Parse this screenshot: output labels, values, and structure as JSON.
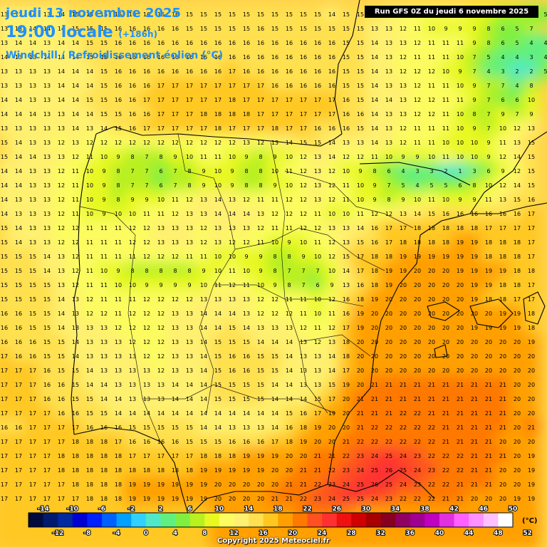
{
  "header": {
    "date": "jeudi 13 novembre 2025",
    "time": "19:00 locale",
    "lead": "(+186h)",
    "parameter": "Windchill / Refroidissement éolien (°C)"
  },
  "run_label": "Run GFS 0Z du jeudi 6 novembre 2025",
  "copyright": "Copyright 2025 Meteociel.fr",
  "legend": {
    "unit": "(°C)",
    "top_labels": [
      "-14",
      "-10",
      "-6",
      "-2",
      "2",
      "6",
      "10",
      "14",
      "18",
      "22",
      "26",
      "30",
      "34",
      "38",
      "42",
      "46",
      "50"
    ],
    "bottom_labels": [
      "-12",
      "-8",
      "-4",
      "0",
      "4",
      "8",
      "12",
      "16",
      "20",
      "24",
      "28",
      "32",
      "36",
      "40",
      "44",
      "48",
      "52"
    ],
    "colors": [
      "#000a3c",
      "#001a6e",
      "#002aa0",
      "#0000d2",
      "#0020ff",
      "#0060ff",
      "#00a0ff",
      "#30d0ff",
      "#50e8c8",
      "#60f080",
      "#80f040",
      "#b8f020",
      "#e8f820",
      "#fcfc60",
      "#fff070",
      "#ffe050",
      "#ffc820",
      "#ffa000",
      "#ff7800",
      "#ff5020",
      "#ff3030",
      "#f01010",
      "#d00000",
      "#a80000",
      "#880020",
      "#900060",
      "#a00090",
      "#c000c0",
      "#e030e0",
      "#ff60ff",
      "#ff90ff",
      "#ffc0ff",
      "#ffffff"
    ]
  },
  "grid": {
    "rows": [
      [
        13,
        13,
        14,
        13,
        14,
        15,
        15,
        15,
        16,
        16,
        16,
        16,
        16,
        15,
        15,
        15,
        15,
        15,
        15,
        15,
        15,
        15,
        15,
        14,
        15,
        15,
        15,
        14,
        13,
        12,
        12,
        11,
        11,
        10,
        9,
        8,
        7,
        6,
        5
      ],
      [
        13,
        13,
        14,
        14,
        14,
        15,
        15,
        15,
        16,
        16,
        16,
        16,
        16,
        15,
        15,
        15,
        15,
        15,
        16,
        15,
        15,
        15,
        15,
        15,
        15,
        15,
        13,
        13,
        12,
        11,
        10,
        9,
        9,
        9,
        8,
        6,
        5,
        7
      ],
      [
        13,
        14,
        14,
        13,
        14,
        14,
        15,
        15,
        16,
        16,
        16,
        16,
        16,
        16,
        16,
        16,
        16,
        16,
        16,
        16,
        16,
        16,
        16,
        16,
        15,
        15,
        14,
        13,
        13,
        12,
        11,
        11,
        11,
        9,
        8,
        6,
        5,
        4,
        4
      ],
      [
        14,
        13,
        13,
        14,
        14,
        14,
        15,
        15,
        16,
        16,
        16,
        16,
        16,
        16,
        16,
        16,
        16,
        16,
        16,
        16,
        16,
        16,
        16,
        16,
        15,
        15,
        14,
        13,
        12,
        11,
        11,
        11,
        10,
        7,
        5,
        4,
        4,
        3,
        4
      ],
      [
        13,
        13,
        13,
        13,
        14,
        14,
        14,
        15,
        16,
        16,
        16,
        16,
        16,
        16,
        16,
        16,
        17,
        16,
        16,
        16,
        16,
        16,
        16,
        16,
        15,
        15,
        14,
        13,
        12,
        12,
        12,
        10,
        9,
        7,
        4,
        3,
        2,
        2,
        5
      ],
      [
        13,
        13,
        13,
        13,
        14,
        14,
        14,
        15,
        16,
        16,
        16,
        17,
        17,
        17,
        17,
        17,
        17,
        17,
        17,
        16,
        16,
        16,
        16,
        16,
        15,
        15,
        14,
        13,
        13,
        12,
        11,
        11,
        10,
        9,
        7,
        7,
        4,
        8
      ],
      [
        14,
        14,
        13,
        13,
        14,
        14,
        15,
        15,
        16,
        16,
        17,
        17,
        17,
        17,
        17,
        17,
        18,
        17,
        17,
        17,
        17,
        17,
        17,
        17,
        16,
        15,
        14,
        14,
        13,
        12,
        12,
        11,
        11,
        9,
        7,
        6,
        6,
        10
      ],
      [
        14,
        14,
        14,
        13,
        13,
        14,
        14,
        15,
        15,
        16,
        16,
        17,
        17,
        17,
        18,
        18,
        18,
        18,
        17,
        17,
        17,
        17,
        17,
        17,
        16,
        16,
        14,
        13,
        13,
        12,
        12,
        11,
        10,
        8,
        7,
        9,
        7,
        9
      ],
      [
        13,
        13,
        13,
        13,
        13,
        14,
        13,
        14,
        15,
        16,
        17,
        17,
        17,
        17,
        17,
        18,
        17,
        17,
        17,
        18,
        17,
        17,
        16,
        16,
        16,
        15,
        14,
        13,
        12,
        11,
        11,
        11,
        10,
        9,
        7,
        10,
        12,
        13
      ],
      [
        15,
        14,
        13,
        13,
        12,
        13,
        12,
        12,
        12,
        12,
        12,
        12,
        12,
        12,
        12,
        12,
        12,
        13,
        12,
        13,
        14,
        15,
        15,
        14,
        13,
        13,
        14,
        13,
        12,
        11,
        11,
        10,
        10,
        10,
        9,
        11,
        13,
        15
      ],
      [
        15,
        14,
        14,
        13,
        13,
        12,
        11,
        10,
        9,
        8,
        7,
        8,
        9,
        10,
        11,
        11,
        10,
        9,
        8,
        9,
        10,
        12,
        13,
        14,
        12,
        12,
        11,
        10,
        9,
        9,
        10,
        11,
        10,
        10,
        9,
        12,
        14,
        15
      ],
      [
        14,
        14,
        13,
        13,
        12,
        11,
        10,
        9,
        8,
        7,
        7,
        6,
        7,
        8,
        9,
        10,
        9,
        8,
        8,
        10,
        11,
        12,
        13,
        12,
        10,
        9,
        8,
        6,
        4,
        3,
        3,
        2,
        1,
        3,
        6,
        9,
        12,
        15
      ],
      [
        14,
        14,
        13,
        13,
        12,
        11,
        10,
        9,
        8,
        7,
        7,
        6,
        7,
        8,
        9,
        10,
        9,
        8,
        8,
        9,
        10,
        12,
        13,
        12,
        11,
        10,
        9,
        7,
        5,
        4,
        5,
        5,
        6,
        8,
        10,
        12,
        14,
        15
      ],
      [
        14,
        13,
        13,
        13,
        12,
        11,
        10,
        9,
        8,
        9,
        9,
        10,
        11,
        12,
        13,
        14,
        13,
        12,
        11,
        11,
        12,
        12,
        13,
        12,
        11,
        10,
        9,
        8,
        9,
        10,
        11,
        10,
        9,
        9,
        11,
        13,
        15,
        16
      ],
      [
        14,
        13,
        13,
        13,
        12,
        11,
        10,
        9,
        10,
        10,
        11,
        11,
        12,
        13,
        13,
        14,
        14,
        14,
        13,
        12,
        12,
        12,
        11,
        10,
        10,
        11,
        12,
        12,
        13,
        14,
        15,
        16,
        16,
        16,
        16,
        16,
        16,
        17
      ],
      [
        15,
        14,
        13,
        13,
        12,
        12,
        11,
        11,
        11,
        12,
        12,
        13,
        13,
        13,
        12,
        13,
        13,
        13,
        12,
        11,
        11,
        12,
        12,
        13,
        13,
        14,
        16,
        17,
        17,
        18,
        18,
        18,
        18,
        18,
        17,
        17,
        17,
        17
      ],
      [
        15,
        14,
        13,
        13,
        12,
        12,
        11,
        11,
        11,
        12,
        12,
        13,
        13,
        13,
        12,
        13,
        12,
        12,
        11,
        10,
        9,
        10,
        11,
        12,
        13,
        15,
        16,
        17,
        18,
        18,
        18,
        18,
        19,
        19,
        18,
        18,
        18,
        17
      ],
      [
        15,
        15,
        15,
        14,
        13,
        12,
        11,
        11,
        11,
        11,
        12,
        12,
        12,
        11,
        11,
        10,
        10,
        9,
        9,
        8,
        8,
        9,
        10,
        12,
        15,
        17,
        18,
        18,
        19,
        19,
        19,
        19,
        19,
        19,
        18,
        18,
        18,
        17
      ],
      [
        15,
        15,
        15,
        14,
        13,
        12,
        11,
        10,
        9,
        8,
        8,
        8,
        8,
        8,
        9,
        10,
        11,
        10,
        9,
        8,
        7,
        7,
        7,
        10,
        14,
        17,
        18,
        19,
        19,
        20,
        20,
        20,
        19,
        19,
        19,
        19,
        18,
        18
      ],
      [
        15,
        15,
        15,
        15,
        13,
        12,
        11,
        11,
        10,
        10,
        9,
        9,
        9,
        9,
        10,
        11,
        12,
        11,
        10,
        9,
        8,
        7,
        6,
        9,
        13,
        16,
        18,
        19,
        20,
        20,
        20,
        20,
        20,
        19,
        19,
        18,
        18,
        17
      ],
      [
        15,
        15,
        15,
        15,
        14,
        13,
        12,
        11,
        11,
        11,
        12,
        12,
        12,
        12,
        13,
        13,
        13,
        13,
        12,
        12,
        11,
        11,
        10,
        12,
        16,
        18,
        19,
        20,
        20,
        20,
        20,
        20,
        20,
        19,
        18,
        18,
        17,
        17
      ],
      [
        16,
        16,
        15,
        15,
        14,
        13,
        12,
        12,
        11,
        12,
        12,
        12,
        13,
        13,
        14,
        14,
        14,
        13,
        12,
        12,
        12,
        11,
        10,
        11,
        16,
        19,
        20,
        20,
        20,
        20,
        20,
        20,
        20,
        20,
        20,
        19,
        19,
        18
      ],
      [
        16,
        16,
        15,
        15,
        14,
        13,
        13,
        13,
        12,
        12,
        12,
        12,
        13,
        13,
        14,
        14,
        15,
        14,
        13,
        13,
        13,
        12,
        11,
        12,
        17,
        19,
        20,
        20,
        20,
        20,
        20,
        20,
        20,
        19,
        19,
        19,
        19,
        18
      ],
      [
        16,
        16,
        16,
        15,
        15,
        14,
        13,
        13,
        13,
        12,
        12,
        12,
        13,
        13,
        14,
        15,
        15,
        15,
        14,
        14,
        14,
        13,
        12,
        13,
        18,
        20,
        20,
        20,
        20,
        20,
        20,
        20,
        20,
        20,
        20,
        20,
        20,
        19
      ],
      [
        17,
        16,
        16,
        15,
        15,
        14,
        13,
        13,
        13,
        13,
        12,
        12,
        13,
        13,
        14,
        15,
        16,
        16,
        15,
        15,
        14,
        13,
        13,
        14,
        18,
        20,
        20,
        20,
        20,
        20,
        20,
        20,
        20,
        20,
        20,
        20,
        20,
        20
      ],
      [
        17,
        17,
        17,
        16,
        15,
        15,
        14,
        13,
        13,
        13,
        13,
        12,
        13,
        13,
        14,
        15,
        16,
        16,
        15,
        15,
        14,
        13,
        13,
        14,
        17,
        20,
        20,
        20,
        20,
        20,
        20,
        20,
        20,
        20,
        20,
        20,
        20,
        20
      ],
      [
        17,
        17,
        17,
        16,
        16,
        15,
        14,
        14,
        13,
        13,
        13,
        13,
        14,
        14,
        14,
        15,
        15,
        15,
        15,
        14,
        14,
        13,
        13,
        15,
        19,
        20,
        21,
        21,
        21,
        21,
        21,
        21,
        21,
        21,
        21,
        21,
        20,
        20
      ],
      [
        17,
        17,
        17,
        16,
        16,
        15,
        15,
        14,
        14,
        13,
        13,
        13,
        14,
        14,
        14,
        15,
        15,
        15,
        15,
        14,
        14,
        14,
        15,
        17,
        20,
        21,
        21,
        21,
        21,
        21,
        21,
        21,
        21,
        21,
        21,
        21,
        20,
        20
      ],
      [
        17,
        17,
        17,
        17,
        16,
        16,
        15,
        15,
        14,
        14,
        14,
        14,
        14,
        14,
        14,
        14,
        14,
        14,
        14,
        14,
        15,
        16,
        17,
        19,
        20,
        21,
        21,
        21,
        22,
        22,
        21,
        21,
        21,
        21,
        21,
        21,
        20,
        20
      ],
      [
        16,
        16,
        17,
        17,
        17,
        17,
        16,
        16,
        16,
        15,
        15,
        15,
        15,
        15,
        14,
        14,
        13,
        13,
        13,
        14,
        16,
        18,
        19,
        20,
        20,
        21,
        22,
        22,
        22,
        22,
        22,
        21,
        21,
        21,
        21,
        21,
        20,
        21
      ],
      [
        17,
        17,
        17,
        17,
        17,
        18,
        18,
        18,
        17,
        16,
        16,
        16,
        16,
        15,
        15,
        15,
        16,
        16,
        16,
        17,
        18,
        19,
        20,
        20,
        21,
        22,
        22,
        22,
        22,
        22,
        22,
        21,
        21,
        21,
        21,
        20,
        20,
        20
      ],
      [
        17,
        17,
        17,
        17,
        18,
        18,
        18,
        18,
        18,
        17,
        17,
        17,
        17,
        17,
        18,
        18,
        18,
        19,
        19,
        19,
        20,
        20,
        21,
        21,
        22,
        23,
        24,
        25,
        24,
        23,
        22,
        22,
        22,
        21,
        21,
        21,
        20,
        19
      ],
      [
        17,
        17,
        17,
        17,
        18,
        18,
        18,
        18,
        18,
        18,
        18,
        18,
        18,
        18,
        19,
        19,
        19,
        19,
        19,
        20,
        20,
        21,
        21,
        22,
        23,
        24,
        25,
        26,
        25,
        24,
        23,
        22,
        22,
        21,
        21,
        20,
        20,
        19
      ],
      [
        17,
        17,
        17,
        17,
        17,
        18,
        18,
        18,
        18,
        19,
        19,
        19,
        19,
        19,
        19,
        20,
        20,
        20,
        20,
        20,
        21,
        21,
        22,
        23,
        24,
        25,
        26,
        25,
        24,
        23,
        22,
        22,
        21,
        21,
        21,
        20,
        20,
        19
      ],
      [
        17,
        17,
        17,
        17,
        17,
        17,
        18,
        18,
        18,
        19,
        19,
        19,
        19,
        19,
        19,
        20,
        20,
        20,
        20,
        21,
        21,
        22,
        23,
        24,
        25,
        25,
        24,
        23,
        22,
        22,
        22,
        21,
        21,
        20,
        20,
        20,
        19,
        19
      ],
      [
        17,
        17,
        17,
        17,
        17,
        17,
        18,
        18,
        18,
        18,
        18,
        18,
        18,
        18,
        18,
        19,
        19,
        19,
        19,
        20,
        20,
        21,
        22,
        22,
        21,
        20,
        20,
        20,
        20,
        20,
        20,
        20,
        19,
        19,
        19,
        19,
        19,
        19
      ],
      [
        17,
        17,
        17,
        17,
        17,
        17,
        17,
        18,
        18,
        18,
        18,
        18,
        18,
        18,
        18,
        19,
        19,
        19,
        19,
        19,
        19,
        19,
        19,
        19,
        19,
        19,
        19,
        19,
        19,
        19,
        19,
        19,
        19,
        19,
        19,
        19,
        19,
        19
      ],
      [
        17,
        17,
        17,
        17,
        17,
        17,
        17,
        18,
        18,
        18,
        18,
        18,
        18,
        18,
        18,
        19,
        19,
        19,
        19,
        19,
        19,
        19,
        19,
        19,
        19,
        19,
        19,
        19,
        19,
        19,
        19,
        19,
        19,
        19,
        19,
        19,
        19,
        19
      ]
    ]
  }
}
